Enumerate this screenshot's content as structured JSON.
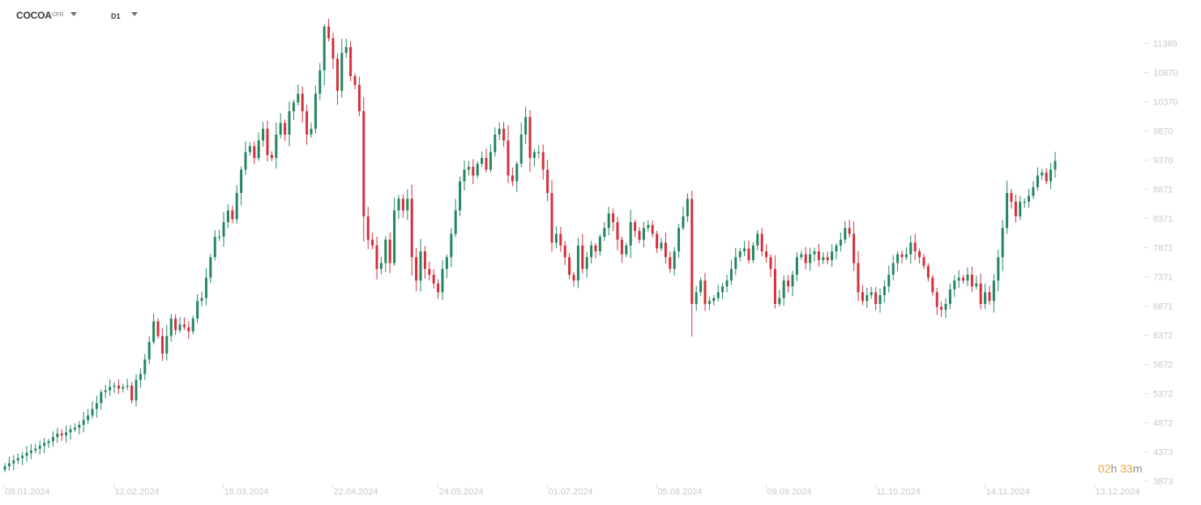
{
  "header": {
    "symbol": "COCOA",
    "instrument_type": "CFD",
    "timeframe": "D1"
  },
  "countdown": {
    "hours": "02",
    "hours_unit": "h",
    "minutes": "33",
    "minutes_unit": "m"
  },
  "colors": {
    "up": "#23865f",
    "down": "#d32f3c",
    "axis_text": "#c9c9c9",
    "grid": "#efefef",
    "countdown": "#f0a33a"
  },
  "chart_data": {
    "type": "candlestick",
    "title": "",
    "xlabel": "",
    "ylabel": "",
    "ylim": [
      3873,
      11850
    ],
    "grid": false,
    "y_ticks": [
      3873,
      4373,
      4872,
      5372,
      5872,
      6372,
      6871,
      7371,
      7871,
      8371,
      8871,
      9370,
      9870,
      10370,
      10870,
      11369
    ],
    "x_ticks": [
      {
        "label": "08.01.2024",
        "bar": 0
      },
      {
        "label": "12.02.2024",
        "bar": 25
      },
      {
        "label": "18.03.2024",
        "bar": 50
      },
      {
        "label": "22.04.2024",
        "bar": 75
      },
      {
        "label": "24.05.2024",
        "bar": 99
      },
      {
        "label": "01.07.2024",
        "bar": 124
      },
      {
        "label": "05.08.2024",
        "bar": 149
      },
      {
        "label": "09.09.2024",
        "bar": 174
      },
      {
        "label": "11.10.2024",
        "bar": 199
      },
      {
        "label": "14.11.2024",
        "bar": 224
      },
      {
        "label": "13.12.2024",
        "bar": 249
      }
    ],
    "closes": [
      4120,
      4170,
      4220,
      4260,
      4300,
      4350,
      4390,
      4420,
      4470,
      4520,
      4550,
      4620,
      4680,
      4650,
      4700,
      4750,
      4780,
      4830,
      4910,
      4990,
      5100,
      5200,
      5390,
      5420,
      5480,
      5500,
      5450,
      5480,
      5500,
      5250,
      5600,
      5700,
      5950,
      6250,
      6600,
      6350,
      6050,
      6350,
      6650,
      6450,
      6550,
      6500,
      6430,
      6650,
      6950,
      7000,
      7350,
      7700,
      8050,
      8050,
      8300,
      8500,
      8350,
      8800,
      9200,
      9500,
      9600,
      9400,
      9700,
      9900,
      9450,
      9400,
      9800,
      10000,
      9800,
      10200,
      10350,
      10500,
      10200,
      9800,
      9900,
      10500,
      10900,
      11650,
      11450,
      11100,
      10550,
      11200,
      11300,
      10800,
      10650,
      10200,
      8400,
      8000,
      7900,
      7500,
      7600,
      8000,
      7600,
      8500,
      8700,
      8500,
      8700,
      7700,
      7300,
      7800,
      7500,
      7400,
      7250,
      7100,
      7500,
      7700,
      8100,
      8500,
      9000,
      9200,
      9250,
      9100,
      9300,
      9400,
      9200,
      9500,
      9800,
      9900,
      9700,
      9100,
      9000,
      9300,
      9800,
      10100,
      9400,
      9500,
      9500,
      9200,
      8800,
      7950,
      8100,
      7900,
      7700,
      7400,
      7300,
      7900,
      7500,
      7700,
      7900,
      7800,
      8050,
      8200,
      8450,
      8300,
      8000,
      7750,
      7900,
      8300,
      8150,
      8000,
      8200,
      8250,
      8100,
      7850,
      7950,
      7700,
      7500,
      7800,
      8200,
      8400,
      8700,
      6900,
      7100,
      7300,
      6900,
      6950,
      7000,
      7100,
      7200,
      7300,
      7500,
      7700,
      7800,
      7850,
      7650,
      7900,
      8100,
      7800,
      7700,
      7500,
      6900,
      7000,
      7300,
      7200,
      7400,
      7700,
      7750,
      7600,
      7750,
      7800,
      7650,
      7700,
      7650,
      7800,
      7900,
      8000,
      8200,
      8100,
      7600,
      7100,
      6950,
      7050,
      7100,
      6900,
      7050,
      7200,
      7400,
      7600,
      7750,
      7700,
      7750,
      7950,
      7800,
      7700,
      7550,
      7350,
      7100,
      6850,
      6800,
      6900,
      7150,
      7300,
      7350,
      7300,
      7400,
      7200,
      7250,
      6900,
      7100,
      6950,
      7300,
      7700,
      8200,
      8800,
      8650,
      8400,
      8650,
      8650,
      8750,
      8900,
      9100,
      9150,
      9000,
      9200,
      9350
    ],
    "series": [
      {
        "name": "COCOA",
        "values": "closes"
      }
    ]
  }
}
